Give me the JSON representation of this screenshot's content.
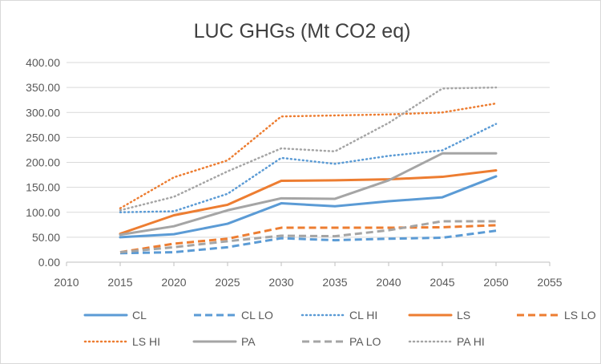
{
  "chart_data": {
    "type": "line",
    "title": "LUC GHGs (Mt CO2 eq)",
    "xlabel": "",
    "ylabel": "",
    "xlim": [
      2010,
      2055
    ],
    "ylim": [
      0,
      400
    ],
    "x_ticks": [
      "2010",
      "2015",
      "2020",
      "2025",
      "2030",
      "2035",
      "2040",
      "2045",
      "2050",
      "2055"
    ],
    "y_ticks": [
      "0.00",
      "50.00",
      "100.00",
      "150.00",
      "200.00",
      "250.00",
      "300.00",
      "350.00",
      "400.00"
    ],
    "grid": "horizontal",
    "legend_position": "bottom",
    "x": [
      2015,
      2020,
      2025,
      2030,
      2035,
      2040,
      2045,
      2050
    ],
    "series": [
      {
        "name": "CL",
        "color": "#5B9BD5",
        "style": "solid",
        "values": [
          50,
          56,
          77,
          118,
          112,
          122,
          130,
          172
        ]
      },
      {
        "name": "CL LO",
        "color": "#5B9BD5",
        "style": "dashed",
        "values": [
          18,
          20,
          30,
          48,
          44,
          47,
          49,
          63
        ]
      },
      {
        "name": "CL HI",
        "color": "#5B9BD5",
        "style": "dotted",
        "values": [
          100,
          102,
          137,
          209,
          197,
          213,
          224,
          277
        ]
      },
      {
        "name": "LS",
        "color": "#ED7D31",
        "style": "solid",
        "values": [
          57,
          94,
          115,
          163,
          164,
          166,
          171,
          184
        ]
      },
      {
        "name": "LS LO",
        "color": "#ED7D31",
        "style": "dashed",
        "values": [
          20,
          37,
          47,
          69,
          69,
          69,
          70,
          74
        ]
      },
      {
        "name": "LS HI",
        "color": "#ED7D31",
        "style": "dotted",
        "values": [
          108,
          170,
          204,
          292,
          294,
          296,
          300,
          318
        ]
      },
      {
        "name": "PA",
        "color": "#A5A5A5",
        "style": "solid",
        "values": [
          55,
          72,
          104,
          128,
          127,
          164,
          218,
          218
        ]
      },
      {
        "name": "PA LO",
        "color": "#A5A5A5",
        "style": "dashed",
        "values": [
          20,
          30,
          42,
          53,
          52,
          64,
          82,
          82
        ]
      },
      {
        "name": "PA HI",
        "color": "#A5A5A5",
        "style": "dotted",
        "values": [
          104,
          131,
          182,
          228,
          222,
          279,
          348,
          350
        ]
      }
    ]
  }
}
